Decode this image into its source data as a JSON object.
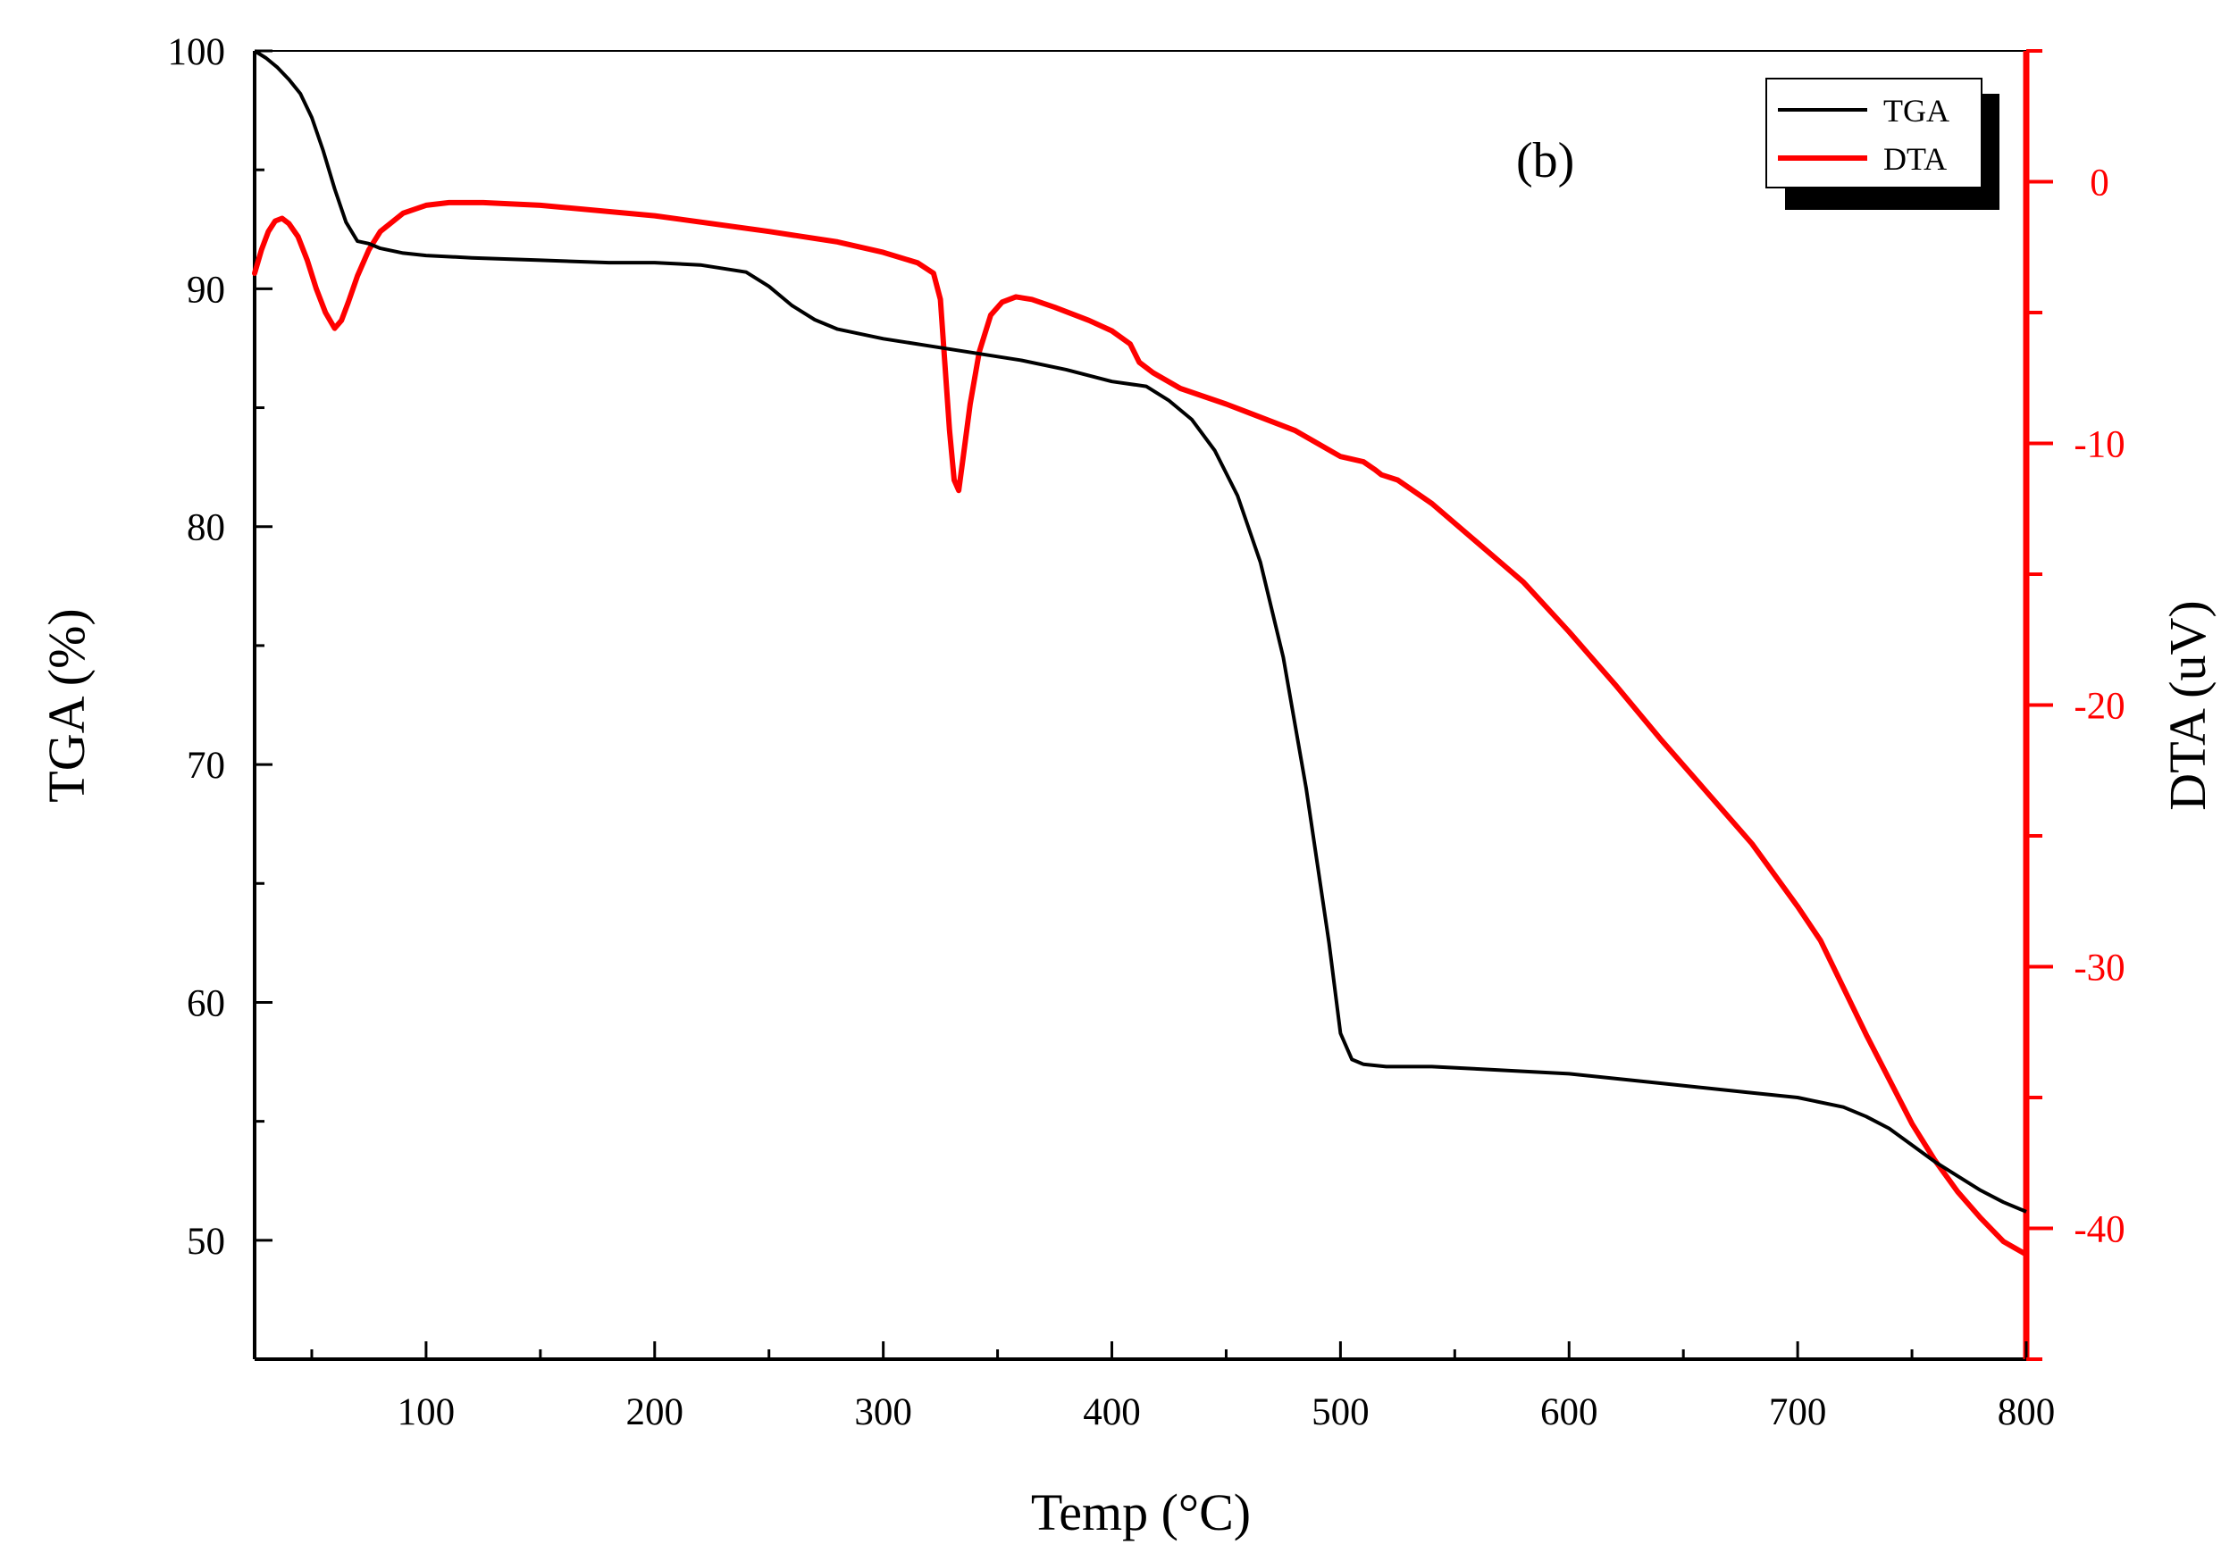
{
  "chart_data": {
    "type": "line",
    "title": "",
    "annotation": "(b)",
    "xlabel": "Temp (°C)",
    "ylabel": "TGA (%)",
    "y2label": "DTA (uV)",
    "xlim": [
      25,
      800
    ],
    "ylim": [
      45,
      100
    ],
    "y2lim": [
      -45,
      5
    ],
    "xticks": [
      100,
      200,
      300,
      400,
      500,
      600,
      700,
      800
    ],
    "yticks": [
      50,
      60,
      70,
      80,
      90,
      100
    ],
    "y2ticks": [
      0,
      -10,
      -20,
      -30,
      -40
    ],
    "legend_position": "top-right",
    "colors": {
      "tga": "#000000",
      "dta": "#ff0000"
    },
    "series": [
      {
        "name": "TGA",
        "axis": "left",
        "color": "#000000",
        "x": [
          25,
          30,
          35,
          40,
          45,
          50,
          55,
          60,
          65,
          70,
          75,
          80,
          90,
          100,
          120,
          150,
          180,
          200,
          220,
          240,
          250,
          260,
          270,
          280,
          300,
          320,
          340,
          360,
          380,
          400,
          415,
          425,
          435,
          445,
          455,
          465,
          475,
          485,
          495,
          500,
          505,
          510,
          520,
          540,
          560,
          600,
          640,
          680,
          700,
          720,
          730,
          740,
          750,
          760,
          770,
          780,
          790,
          800
        ],
        "values": [
          100,
          99.7,
          99.3,
          98.8,
          98.2,
          97.2,
          95.8,
          94.2,
          92.8,
          92.0,
          91.9,
          91.7,
          91.5,
          91.4,
          91.3,
          91.2,
          91.1,
          91.1,
          91.0,
          90.7,
          90.1,
          89.3,
          88.7,
          88.3,
          87.9,
          87.6,
          87.3,
          87.0,
          86.6,
          86.1,
          85.9,
          85.3,
          84.5,
          83.2,
          81.3,
          78.5,
          74.5,
          69.0,
          62.5,
          58.7,
          57.6,
          57.4,
          57.3,
          57.3,
          57.2,
          57.0,
          56.6,
          56.2,
          56.0,
          55.6,
          55.2,
          54.7,
          54.0,
          53.3,
          52.7,
          52.1,
          51.6,
          51.2
        ]
      },
      {
        "name": "DTA",
        "axis": "right",
        "color": "#ff0000",
        "x": [
          25,
          28,
          31,
          34,
          37,
          40,
          44,
          48,
          52,
          56,
          60,
          63,
          66,
          70,
          75,
          80,
          90,
          100,
          110,
          125,
          150,
          200,
          250,
          280,
          300,
          315,
          322,
          325,
          327,
          329,
          331,
          333,
          335,
          338,
          342,
          347,
          352,
          358,
          365,
          375,
          390,
          400,
          408,
          412,
          418,
          430,
          450,
          480,
          500,
          510,
          515,
          518,
          525,
          540,
          560,
          580,
          600,
          620,
          640,
          660,
          680,
          700,
          710,
          720,
          730,
          740,
          750,
          760,
          770,
          780,
          790,
          800
        ],
        "values": [
          -3.5,
          -2.6,
          -1.9,
          -1.5,
          -1.4,
          -1.6,
          -2.1,
          -3.0,
          -4.1,
          -5.0,
          -5.6,
          -5.3,
          -4.6,
          -3.6,
          -2.6,
          -1.9,
          -1.2,
          -0.9,
          -0.8,
          -0.8,
          -0.9,
          -1.3,
          -1.9,
          -2.3,
          -2.7,
          -3.1,
          -3.5,
          -4.5,
          -7.0,
          -9.5,
          -11.4,
          -11.8,
          -10.5,
          -8.5,
          -6.5,
          -5.1,
          -4.6,
          -4.4,
          -4.5,
          -4.8,
          -5.3,
          -5.7,
          -6.2,
          -6.9,
          -7.3,
          -7.9,
          -8.5,
          -9.5,
          -10.5,
          -10.7,
          -11.0,
          -11.2,
          -11.4,
          -12.3,
          -13.8,
          -15.3,
          -17.2,
          -19.2,
          -21.3,
          -23.3,
          -25.3,
          -27.7,
          -29.0,
          -30.8,
          -32.6,
          -34.3,
          -36.0,
          -37.4,
          -38.6,
          -39.6,
          -40.5,
          -41.0
        ]
      }
    ]
  }
}
